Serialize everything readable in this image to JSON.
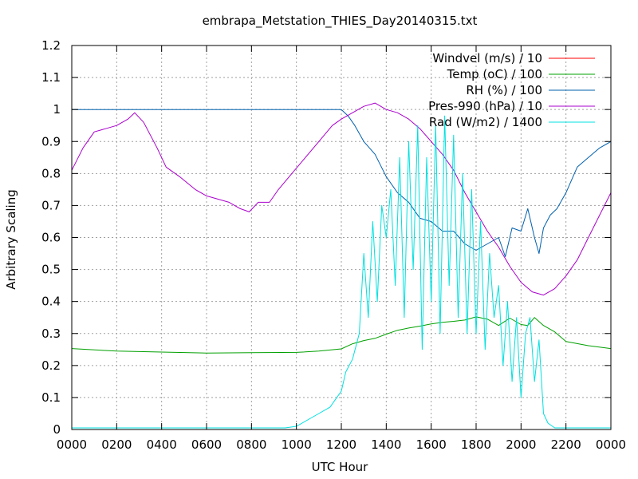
{
  "chart_data": {
    "type": "line",
    "title": "embrapa_Metstation_THIES_Day20140315.txt",
    "xlabel": "UTC Hour",
    "ylabel": "Arbitrary Scaling",
    "xlim": [
      0,
      24
    ],
    "ylim": [
      0,
      1.2
    ],
    "grid": true,
    "legend_position": "top-right",
    "x_ticks": [
      0,
      2,
      4,
      6,
      8,
      10,
      12,
      14,
      16,
      18,
      20,
      22,
      24
    ],
    "x_tick_labels": [
      "0000",
      "0200",
      "0400",
      "0600",
      "0800",
      "1000",
      "1200",
      "1400",
      "1600",
      "1800",
      "2000",
      "2200",
      "0000"
    ],
    "y_ticks": [
      0,
      0.1,
      0.2,
      0.3,
      0.4,
      0.5,
      0.6,
      0.7,
      0.8,
      0.9,
      1,
      1.1,
      1.2
    ],
    "y_tick_labels": [
      "0",
      "0.1",
      "0.2",
      "0.3",
      "0.4",
      "0.5",
      "0.6",
      "0.7",
      "0.8",
      "0.9",
      "1",
      "1.1",
      "1.2"
    ],
    "series": [
      {
        "name": "Windvel (m/s) / 10",
        "color": "#ff0000",
        "x": [],
        "y": []
      },
      {
        "name": "Temp (oC) / 100",
        "color": "#00a000",
        "x": [
          0,
          2,
          4,
          6,
          8,
          10,
          11,
          12,
          12.5,
          13,
          13.5,
          14,
          14.5,
          15,
          15.5,
          16,
          16.5,
          17,
          17.5,
          18,
          18.5,
          19,
          19.5,
          20,
          20.3,
          20.6,
          21,
          21.5,
          22,
          23,
          24
        ],
        "y": [
          0.253,
          0.245,
          0.242,
          0.239,
          0.24,
          0.241,
          0.245,
          0.252,
          0.268,
          0.278,
          0.285,
          0.298,
          0.31,
          0.317,
          0.323,
          0.33,
          0.335,
          0.338,
          0.342,
          0.352,
          0.345,
          0.325,
          0.348,
          0.328,
          0.325,
          0.35,
          0.325,
          0.305,
          0.275,
          0.262,
          0.253
        ]
      },
      {
        "name": "RH (%) / 100",
        "color": "#0060ad",
        "x": [
          0,
          2,
          4,
          6,
          8,
          10,
          11.5,
          12,
          12.3,
          12.6,
          13,
          13.5,
          14,
          14.5,
          15,
          15.5,
          16,
          16.5,
          17,
          17.5,
          18,
          18.5,
          19,
          19.3,
          19.6,
          20,
          20.3,
          20.6,
          20.8,
          21,
          21.3,
          21.6,
          22,
          22.5,
          23,
          23.5,
          24
        ],
        "y": [
          1,
          1,
          1,
          1,
          1,
          1,
          1,
          1,
          0.98,
          0.95,
          0.9,
          0.86,
          0.79,
          0.74,
          0.71,
          0.66,
          0.65,
          0.62,
          0.62,
          0.58,
          0.56,
          0.58,
          0.6,
          0.54,
          0.63,
          0.62,
          0.69,
          0.6,
          0.55,
          0.63,
          0.67,
          0.69,
          0.74,
          0.82,
          0.85,
          0.88,
          0.9
        ]
      },
      {
        "name": "Pres-990 (hPa) / 10",
        "color": "#aa00cc",
        "x": [
          0,
          0.5,
          1,
          1.5,
          2,
          2.5,
          2.8,
          3.2,
          3.8,
          4.2,
          4.8,
          5.5,
          6,
          6.5,
          7,
          7.5,
          7.9,
          8.3,
          8.8,
          9.2,
          9.8,
          10.4,
          11,
          11.6,
          12,
          12.5,
          13,
          13.5,
          14,
          14.5,
          15,
          15.5,
          16,
          16.5,
          17,
          17.5,
          18,
          18.5,
          19,
          19.5,
          20,
          20.5,
          21,
          21.5,
          22,
          22.5,
          23,
          23.5,
          24
        ],
        "y": [
          0.81,
          0.88,
          0.93,
          0.94,
          0.95,
          0.97,
          0.99,
          0.96,
          0.88,
          0.82,
          0.79,
          0.75,
          0.73,
          0.72,
          0.71,
          0.69,
          0.68,
          0.71,
          0.71,
          0.75,
          0.8,
          0.85,
          0.9,
          0.95,
          0.97,
          0.99,
          1.01,
          1.02,
          1.0,
          0.99,
          0.97,
          0.94,
          0.9,
          0.86,
          0.81,
          0.74,
          0.68,
          0.62,
          0.57,
          0.51,
          0.46,
          0.43,
          0.42,
          0.44,
          0.48,
          0.53,
          0.6,
          0.67,
          0.74
        ]
      },
      {
        "name": "Rad (W/m2) / 1400",
        "color": "#00e0e0",
        "x": [
          0,
          2,
          4,
          6,
          8,
          9.5,
          10,
          10.5,
          11,
          11.5,
          12,
          12.2,
          12.5,
          12.8,
          13,
          13.2,
          13.4,
          13.6,
          13.8,
          14,
          14.2,
          14.4,
          14.6,
          14.8,
          15,
          15.2,
          15.4,
          15.6,
          15.8,
          16,
          16.2,
          16.4,
          16.6,
          16.8,
          17,
          17.2,
          17.4,
          17.6,
          17.8,
          18,
          18.2,
          18.4,
          18.6,
          18.8,
          19,
          19.2,
          19.4,
          19.6,
          19.8,
          20,
          20.2,
          20.4,
          20.6,
          20.8,
          21,
          21.2,
          21.5,
          22,
          23,
          24
        ],
        "y": [
          0.005,
          0.005,
          0.005,
          0.005,
          0.005,
          0.005,
          0.01,
          0.03,
          0.05,
          0.07,
          0.12,
          0.18,
          0.22,
          0.3,
          0.55,
          0.35,
          0.65,
          0.4,
          0.7,
          0.6,
          0.75,
          0.45,
          0.85,
          0.35,
          0.9,
          0.5,
          0.95,
          0.25,
          0.85,
          0.4,
          0.95,
          0.3,
          0.98,
          0.45,
          0.92,
          0.35,
          0.8,
          0.3,
          0.75,
          0.3,
          0.65,
          0.25,
          0.55,
          0.35,
          0.45,
          0.2,
          0.4,
          0.15,
          0.35,
          0.1,
          0.3,
          0.35,
          0.15,
          0.28,
          0.05,
          0.02,
          0.005,
          0.005,
          0.005,
          0.005
        ]
      }
    ]
  }
}
